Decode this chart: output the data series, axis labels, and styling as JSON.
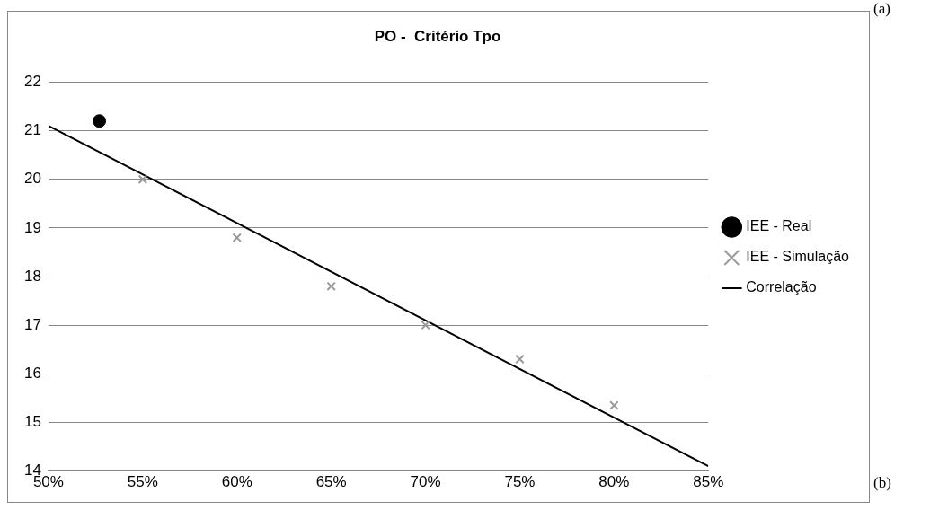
{
  "chart_data": {
    "type": "scatter",
    "title": "PO -  Critério Tpo",
    "xlim": [
      50,
      85
    ],
    "xticks": [
      {
        "value": 50,
        "label": "50%"
      },
      {
        "value": 55,
        "label": "55%"
      },
      {
        "value": 60,
        "label": "60%"
      },
      {
        "value": 65,
        "label": "65%"
      },
      {
        "value": 70,
        "label": "70%"
      },
      {
        "value": 75,
        "label": "75%"
      },
      {
        "value": 80,
        "label": "80%"
      },
      {
        "value": 85,
        "label": "85%"
      }
    ],
    "ylim": [
      14,
      22
    ],
    "yticks": [
      14,
      15,
      16,
      17,
      18,
      19,
      20,
      21,
      22
    ],
    "grid": "y",
    "legend": "right",
    "series": [
      {
        "name": "IEE - Real",
        "type": "scatter",
        "marker": "circle",
        "color": "#000000",
        "x": [
          52.7
        ],
        "values": [
          21.2
        ]
      },
      {
        "name": "IEE - Simulação",
        "type": "scatter",
        "marker": "cross",
        "color": "#9a9a9a",
        "x": [
          55,
          60,
          65,
          70,
          75,
          80
        ],
        "values": [
          20.0,
          18.8,
          17.8,
          17.0,
          16.3,
          15.35
        ]
      },
      {
        "name": "Correlação",
        "type": "line",
        "marker": "none",
        "color": "#000000",
        "x": [
          50,
          85
        ],
        "values": [
          21.1,
          14.1
        ]
      }
    ],
    "annotations": [
      "(a)",
      "(b)"
    ]
  }
}
